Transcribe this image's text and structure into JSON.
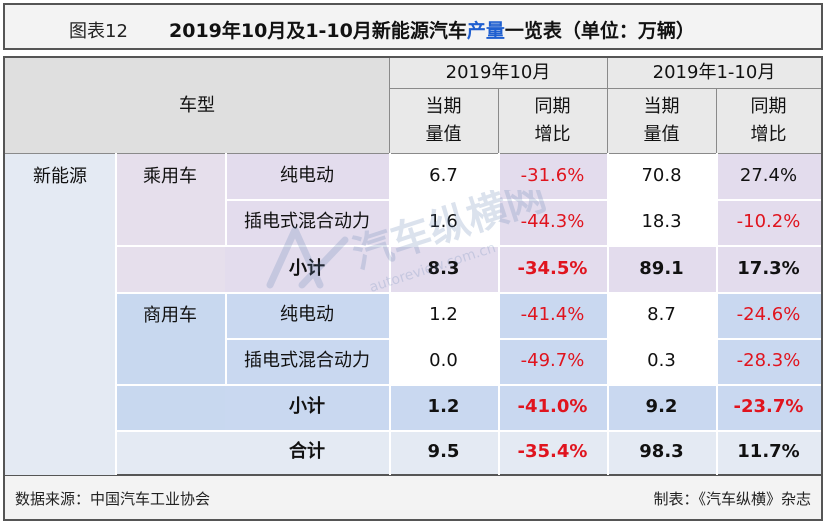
{
  "title": {
    "figure_no": "图表12",
    "text_before": "2019年10月及1-10月新能源汽车",
    "highlight": "产量",
    "text_after": "一览表（单位：万辆）"
  },
  "header": {
    "vehicle_type": "车型",
    "period_month": "2019年10月",
    "period_ytd": "2019年1-10月",
    "current_l1": "当期",
    "current_l2": "量值",
    "yoy_l1": "同期",
    "yoy_l2": "增比"
  },
  "category": "新能源",
  "groups": [
    {
      "name": "乘用车",
      "rows": [
        {
          "type": "纯电动",
          "oct_value": "6.7",
          "oct_yoy": "-31.6%",
          "ytd_value": "70.8",
          "ytd_yoy": "27.4%"
        },
        {
          "type": "插电式混合动力",
          "oct_value": "1.6",
          "oct_yoy": "-44.3%",
          "ytd_value": "18.3",
          "ytd_yoy": "-10.2%"
        }
      ],
      "subtotal": {
        "label": "小计",
        "oct_value": "8.3",
        "oct_yoy": "-34.5%",
        "ytd_value": "89.1",
        "ytd_yoy": "17.3%"
      }
    },
    {
      "name": "商用车",
      "rows": [
        {
          "type": "纯电动",
          "oct_value": "1.2",
          "oct_yoy": "-41.4%",
          "ytd_value": "8.7",
          "ytd_yoy": "-24.6%"
        },
        {
          "type": "插电式混合动力",
          "oct_value": "0.0",
          "oct_yoy": "-49.7%",
          "ytd_value": "0.3",
          "ytd_yoy": "-28.3%"
        }
      ],
      "subtotal": {
        "label": "小计",
        "oct_value": "1.2",
        "oct_yoy": "-41.0%",
        "ytd_value": "9.2",
        "ytd_yoy": "-23.7%"
      }
    }
  ],
  "total": {
    "label": "合计",
    "oct_value": "9.5",
    "oct_yoy": "-35.4%",
    "ytd_value": "98.3",
    "ytd_yoy": "11.7%"
  },
  "footer": {
    "source": "数据来源：中国汽车工业协会",
    "maker": "制表：《汽车纵横》杂志"
  },
  "watermark": {
    "cn": "汽车纵横网",
    "en": "autoreview.com.cn"
  },
  "colors": {
    "negative": "#e0141e",
    "highlight": "#1f5fd0",
    "passenger_bg": "#e6dfec",
    "commercial_bg": "#c8d8ef",
    "header_bg": "#dfdfdf"
  }
}
